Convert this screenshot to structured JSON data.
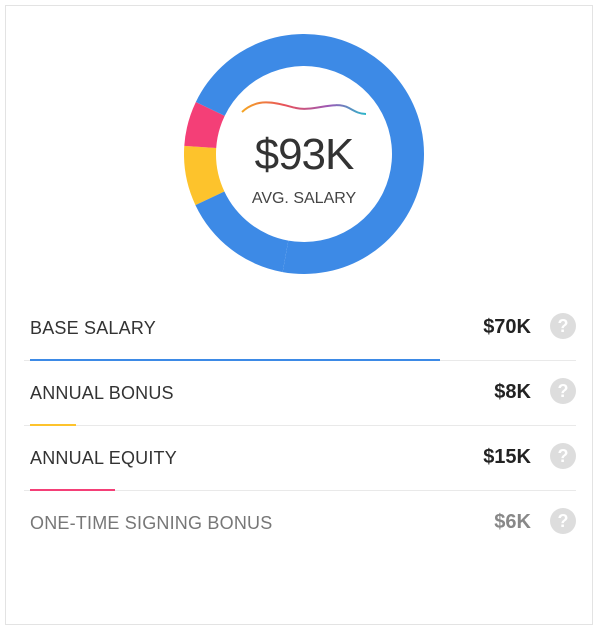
{
  "summary": {
    "value": "$93K",
    "label": "AVG. SALARY"
  },
  "chart_data": {
    "type": "pie",
    "style": "donut",
    "slices": [
      {
        "label": "BASE SALARY",
        "value": 70,
        "color": "#3d8ae6"
      },
      {
        "label": "ANNUAL BONUS",
        "value": 8,
        "color": "#fdc32c"
      },
      {
        "label": "ANNUAL EQUITY",
        "value": 15,
        "color": "#3d8ae6"
      },
      {
        "label": "ONE-TIME SIGNING BONUS",
        "value": 6,
        "color": "#f43f77"
      }
    ]
  },
  "components": [
    {
      "label": "BASE SALARY",
      "value": "$70K",
      "bar_fraction": 0.75,
      "color": "#3d8ae6",
      "help_icon": "question-circle-icon"
    },
    {
      "label": "ANNUAL BONUS",
      "value": "$8K",
      "bar_fraction": 0.085,
      "color": "#fdc32c",
      "help_icon": "question-circle-icon"
    },
    {
      "label": "ANNUAL EQUITY",
      "value": "$15K",
      "bar_fraction": 0.155,
      "color": "#f43f77",
      "help_icon": "question-circle-icon"
    },
    {
      "label": "ONE-TIME SIGNING BONUS",
      "value": "$6K",
      "bar_fraction": 0,
      "color": "#cccccc",
      "help_icon": "question-circle-icon"
    }
  ]
}
